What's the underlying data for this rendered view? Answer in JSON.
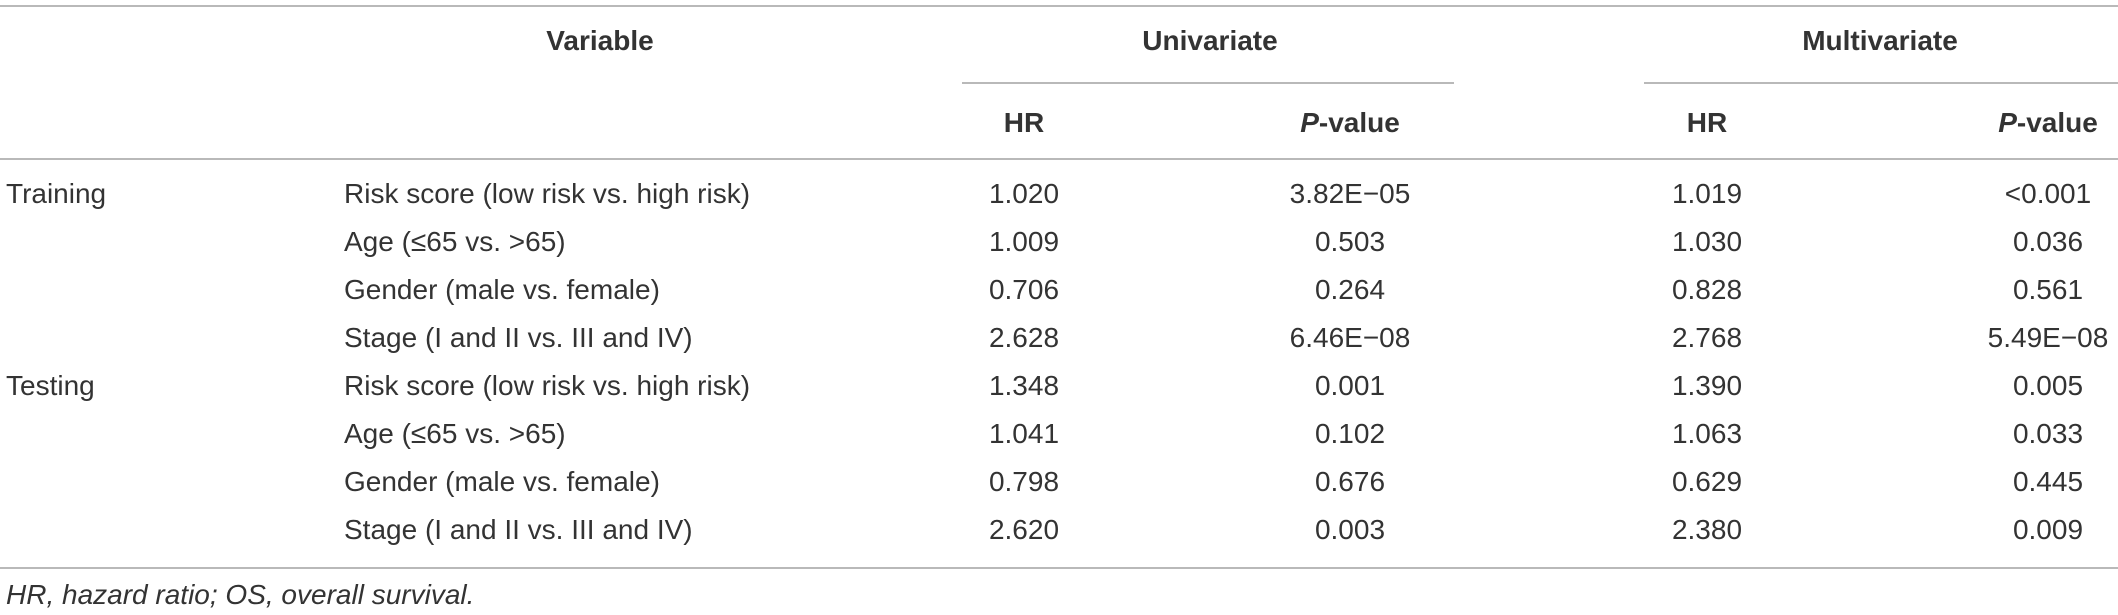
{
  "table": {
    "header": {
      "variable": "Variable",
      "univariate": "Univariate",
      "multivariate": "Multivariate",
      "hr": "HR",
      "p_italic": "P",
      "p_rest": "-value"
    },
    "groups": [
      {
        "label": "Training",
        "rows": [
          {
            "variable": "Risk score (low risk vs. high risk)",
            "uni_hr": "1.020",
            "uni_p": "3.82E−05",
            "multi_hr": "1.019",
            "multi_p": "<0.001"
          },
          {
            "variable": "Age (≤65 vs. >65)",
            "uni_hr": "1.009",
            "uni_p": "0.503",
            "multi_hr": "1.030",
            "multi_p": "0.036"
          },
          {
            "variable": "Gender (male vs. female)",
            "uni_hr": "0.706",
            "uni_p": "0.264",
            "multi_hr": "0.828",
            "multi_p": "0.561"
          },
          {
            "variable": "Stage (I and II vs. III and IV)",
            "uni_hr": "2.628",
            "uni_p": "6.46E−08",
            "multi_hr": "2.768",
            "multi_p": "5.49E−08"
          }
        ]
      },
      {
        "label": "Testing",
        "rows": [
          {
            "variable": "Risk score (low risk vs. high risk)",
            "uni_hr": "1.348",
            "uni_p": "0.001",
            "multi_hr": "1.390",
            "multi_p": "0.005"
          },
          {
            "variable": "Age (≤65 vs. >65)",
            "uni_hr": "1.041",
            "uni_p": "0.102",
            "multi_hr": "1.063",
            "multi_p": "0.033"
          },
          {
            "variable": "Gender (male vs. female)",
            "uni_hr": "0.798",
            "uni_p": "0.676",
            "multi_hr": "0.629",
            "multi_p": "0.445"
          },
          {
            "variable": "Stage (I and II vs. III and IV)",
            "uni_hr": "2.620",
            "uni_p": "0.003",
            "multi_hr": "2.380",
            "multi_p": "0.009"
          }
        ]
      }
    ]
  },
  "footnote": "HR, hazard ratio; OS, overall survival."
}
